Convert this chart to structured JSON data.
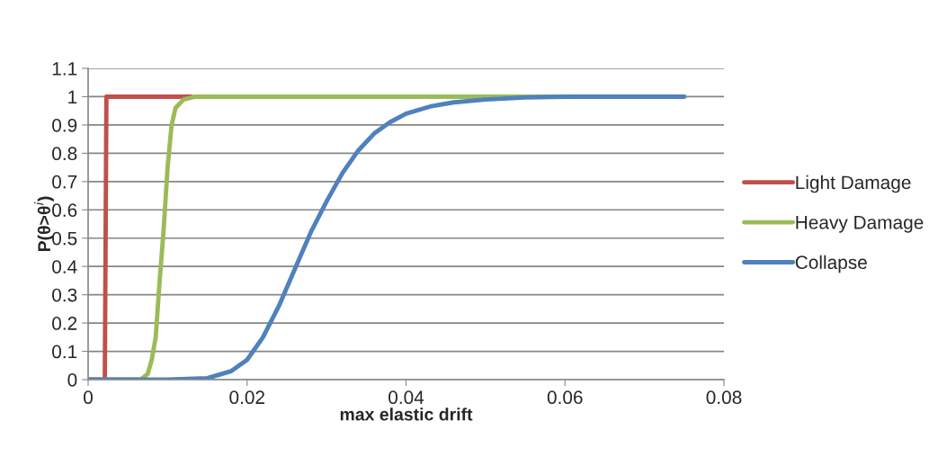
{
  "chart_data": {
    "type": "line",
    "xlabel": "max elastic drift",
    "ylabel": "P(θ>θ$^{i}$)",
    "xlim": [
      0,
      0.08
    ],
    "ylim": [
      0,
      1.1
    ],
    "xticks": [
      0,
      0.02,
      0.04,
      0.06,
      0.08
    ],
    "yticks": [
      0,
      0.1,
      0.2,
      0.3,
      0.4,
      0.5,
      0.6,
      0.7,
      0.8,
      0.9,
      1,
      1.1
    ],
    "grid": "y",
    "legend": "right",
    "marker": "none",
    "line_style": "solid",
    "series": [
      {
        "name": "Light Damage",
        "color": "#c0504d",
        "x": [
          0,
          0.0021,
          0.0023,
          0.013
        ],
        "values": [
          0,
          0,
          1,
          1
        ]
      },
      {
        "name": "Heavy Damage",
        "color": "#9bbb59",
        "x": [
          0,
          0.0066,
          0.0075,
          0.008,
          0.0085,
          0.009,
          0.0095,
          0.01,
          0.0105,
          0.011,
          0.012,
          0.0135,
          0.075
        ],
        "values": [
          0,
          0,
          0.02,
          0.07,
          0.15,
          0.35,
          0.53,
          0.75,
          0.9,
          0.96,
          0.99,
          1,
          1
        ]
      },
      {
        "name": "Collapse",
        "color": "#4f81bd",
        "x": [
          0,
          0.01,
          0.015,
          0.018,
          0.02,
          0.022,
          0.024,
          0.026,
          0.028,
          0.03,
          0.032,
          0.034,
          0.036,
          0.038,
          0.04,
          0.043,
          0.046,
          0.05,
          0.055,
          0.06,
          0.075
        ],
        "values": [
          0,
          0,
          0.005,
          0.03,
          0.07,
          0.15,
          0.26,
          0.39,
          0.52,
          0.63,
          0.73,
          0.81,
          0.87,
          0.91,
          0.94,
          0.965,
          0.98,
          0.99,
          0.997,
          1,
          1
        ]
      }
    ]
  }
}
